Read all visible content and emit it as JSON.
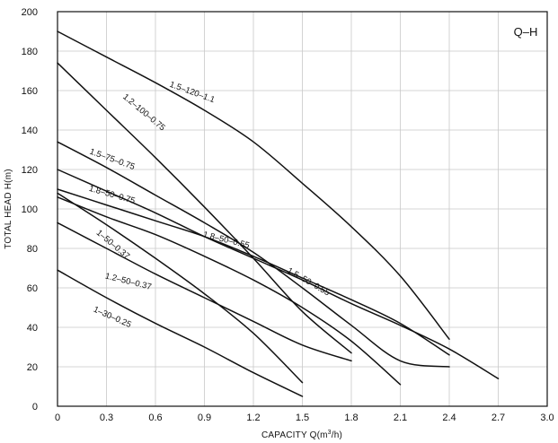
{
  "chart_data": {
    "type": "line",
    "title": "",
    "tag": "Q–H",
    "xlabel_prefix": "CAPACITY  Q(m",
    "xlabel_sup": "3",
    "xlabel_suffix": "/h)",
    "ylabel": "TOTAL HEAD  H(m)",
    "xlim": [
      0,
      3.0
    ],
    "ylim": [
      0,
      200
    ],
    "x_ticks": [
      0,
      0.3,
      0.6,
      0.9,
      1.2,
      1.5,
      1.8,
      2.1,
      2.4,
      2.7,
      3.0
    ],
    "x_tick_labels": [
      "0",
      "0.3",
      "0.6",
      "0.9",
      "1.2",
      "1.5",
      "1.8",
      "2.1",
      "2.4",
      "2.7",
      "3.0"
    ],
    "y_ticks": [
      0,
      20,
      40,
      60,
      80,
      100,
      120,
      140,
      160,
      180,
      200
    ],
    "y_tick_labels": [
      "0",
      "20",
      "40",
      "60",
      "80",
      "100",
      "120",
      "140",
      "160",
      "180",
      "200"
    ],
    "grid": true,
    "series": [
      {
        "name": "1.5–120–1.1",
        "label_at": [
          0.82,
          158
        ],
        "label_angle": 20,
        "points": [
          [
            0,
            190
          ],
          [
            0.3,
            177
          ],
          [
            0.6,
            164
          ],
          [
            0.9,
            150
          ],
          [
            1.2,
            134
          ],
          [
            1.5,
            113
          ],
          [
            1.8,
            91
          ],
          [
            2.1,
            66
          ],
          [
            2.4,
            34
          ]
        ]
      },
      {
        "name": "1.2–100–0.75",
        "label_at": [
          0.52,
          148
        ],
        "label_angle": 40,
        "points": [
          [
            0,
            174
          ],
          [
            0.3,
            150
          ],
          [
            0.6,
            126
          ],
          [
            0.9,
            101
          ],
          [
            1.2,
            75
          ],
          [
            1.5,
            48
          ],
          [
            1.8,
            27
          ]
        ]
      },
      {
        "name": "1.5–75–0.75",
        "label_at": [
          0.33,
          124
        ],
        "label_angle": 20,
        "points": [
          [
            0,
            134
          ],
          [
            0.3,
            121
          ],
          [
            0.6,
            107
          ],
          [
            0.9,
            93
          ],
          [
            1.2,
            78
          ],
          [
            1.5,
            60
          ],
          [
            1.8,
            41
          ],
          [
            2.1,
            23
          ],
          [
            2.4,
            20
          ]
        ]
      },
      {
        "name": "1.8–50–0.75",
        "label_at": [
          0.33,
          106
        ],
        "label_angle": 16,
        "points": [
          [
            0,
            120
          ],
          [
            0.3,
            109
          ],
          [
            0.6,
            98
          ],
          [
            0.9,
            86
          ],
          [
            1.2,
            75
          ],
          [
            1.5,
            64
          ],
          [
            1.8,
            52
          ],
          [
            2.1,
            41
          ],
          [
            2.4,
            29
          ],
          [
            2.7,
            14
          ]
        ]
      },
      {
        "name": "1.8–50–0.55",
        "label_at": [
          1.03,
          83
        ],
        "label_angle": 14,
        "points": [
          [
            0,
            110
          ],
          [
            0.3,
            102
          ],
          [
            0.6,
            94
          ],
          [
            0.9,
            86
          ],
          [
            1.2,
            76
          ],
          [
            1.5,
            65
          ],
          [
            1.8,
            54
          ],
          [
            2.1,
            42
          ],
          [
            2.4,
            26
          ]
        ]
      },
      {
        "name": "1.5–50–0.55",
        "label_at": [
          1.53,
          62
        ],
        "label_angle": 30,
        "points": [
          [
            0,
            106
          ],
          [
            0.3,
            96
          ],
          [
            0.6,
            87
          ],
          [
            0.9,
            76
          ],
          [
            1.2,
            64
          ],
          [
            1.5,
            50
          ],
          [
            1.8,
            33
          ],
          [
            2.1,
            11
          ]
        ]
      },
      {
        "name": "1–50–0.37",
        "label_at": [
          0.33,
          81
        ],
        "label_angle": 40,
        "points": [
          [
            0,
            108
          ],
          [
            0.3,
            92
          ],
          [
            0.6,
            75
          ],
          [
            0.9,
            57
          ],
          [
            1.2,
            37
          ],
          [
            1.5,
            12
          ]
        ]
      },
      {
        "name": "1.2–50–0.37",
        "label_at": [
          0.43,
          62
        ],
        "label_angle": 14,
        "points": [
          [
            0,
            93
          ],
          [
            0.3,
            80
          ],
          [
            0.6,
            67
          ],
          [
            0.9,
            55
          ],
          [
            1.2,
            43
          ],
          [
            1.5,
            31
          ],
          [
            1.8,
            23
          ]
        ]
      },
      {
        "name": "1–30–0.25",
        "label_at": [
          0.33,
          44
        ],
        "label_angle": 24,
        "points": [
          [
            0,
            69
          ],
          [
            0.3,
            55
          ],
          [
            0.6,
            42
          ],
          [
            0.9,
            30
          ],
          [
            1.2,
            17
          ],
          [
            1.5,
            5
          ]
        ]
      }
    ]
  }
}
